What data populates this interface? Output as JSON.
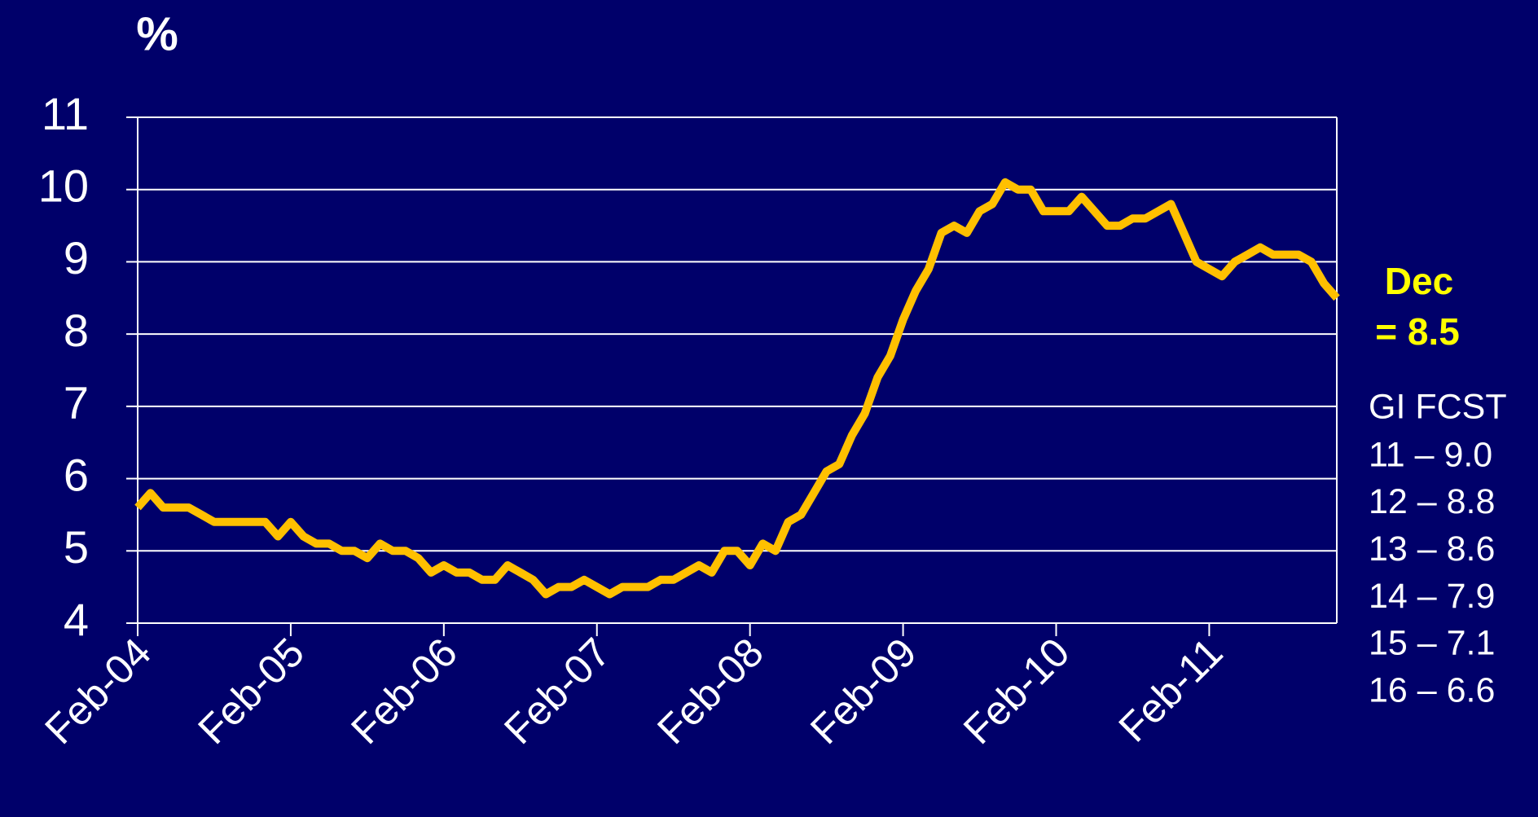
{
  "chart_data": {
    "type": "line",
    "title": "%",
    "categories": [
      "Feb-04",
      null,
      null,
      null,
      null,
      null,
      null,
      null,
      null,
      null,
      null,
      null,
      "Feb-05",
      null,
      null,
      null,
      null,
      null,
      null,
      null,
      null,
      null,
      null,
      null,
      "Feb-06",
      null,
      null,
      null,
      null,
      null,
      null,
      null,
      null,
      null,
      null,
      null,
      "Feb-07",
      null,
      null,
      null,
      null,
      null,
      null,
      null,
      null,
      null,
      null,
      null,
      "Feb-08",
      null,
      null,
      null,
      null,
      null,
      null,
      null,
      null,
      null,
      null,
      null,
      "Feb-09",
      null,
      null,
      null,
      null,
      null,
      null,
      null,
      null,
      null,
      null,
      null,
      "Feb-10",
      null,
      null,
      null,
      null,
      null,
      null,
      null,
      null,
      null,
      null,
      null,
      "Feb-11",
      null,
      null,
      null,
      null,
      null,
      null,
      null,
      null,
      null,
      null
    ],
    "series": [
      {
        "color": "#ffc000",
        "values": [
          5.6,
          5.8,
          5.6,
          5.6,
          5.6,
          5.5,
          5.4,
          5.4,
          5.4,
          5.4,
          5.4,
          5.2,
          5.4,
          5.2,
          5.1,
          5.1,
          5.0,
          5.0,
          4.9,
          5.1,
          5.0,
          5.0,
          4.9,
          4.7,
          4.8,
          4.7,
          4.7,
          4.6,
          4.6,
          4.8,
          4.7,
          4.6,
          4.4,
          4.5,
          4.5,
          4.6,
          4.5,
          4.4,
          4.5,
          4.5,
          4.5,
          4.6,
          4.6,
          4.7,
          4.8,
          4.7,
          5.0,
          5.0,
          4.8,
          5.1,
          5.0,
          5.4,
          5.5,
          5.8,
          6.1,
          6.2,
          6.6,
          6.9,
          7.4,
          7.7,
          8.2,
          8.6,
          8.9,
          9.4,
          9.5,
          9.4,
          9.7,
          9.8,
          10.1,
          10.0,
          10.0,
          9.7,
          9.7,
          9.7,
          9.9,
          9.7,
          9.5,
          9.5,
          9.6,
          9.6,
          9.7,
          9.8,
          9.4,
          9.0,
          8.9,
          8.8,
          9.0,
          9.1,
          9.2,
          9.1,
          9.1,
          9.1,
          9.0,
          8.7,
          8.5
        ]
      }
    ],
    "ylim": [
      4,
      11
    ],
    "yticks": [
      4,
      5,
      6,
      7,
      8,
      9,
      10,
      11
    ],
    "grid": true,
    "annotations": [
      "Dec",
      "= 8.5"
    ],
    "forecast": {
      "title": "GI FCST",
      "rows": [
        "11 – 9.0",
        "12 – 8.8",
        "13 – 8.6",
        "14 – 7.9",
        "15 – 7.1",
        "16 – 6.6"
      ]
    }
  }
}
